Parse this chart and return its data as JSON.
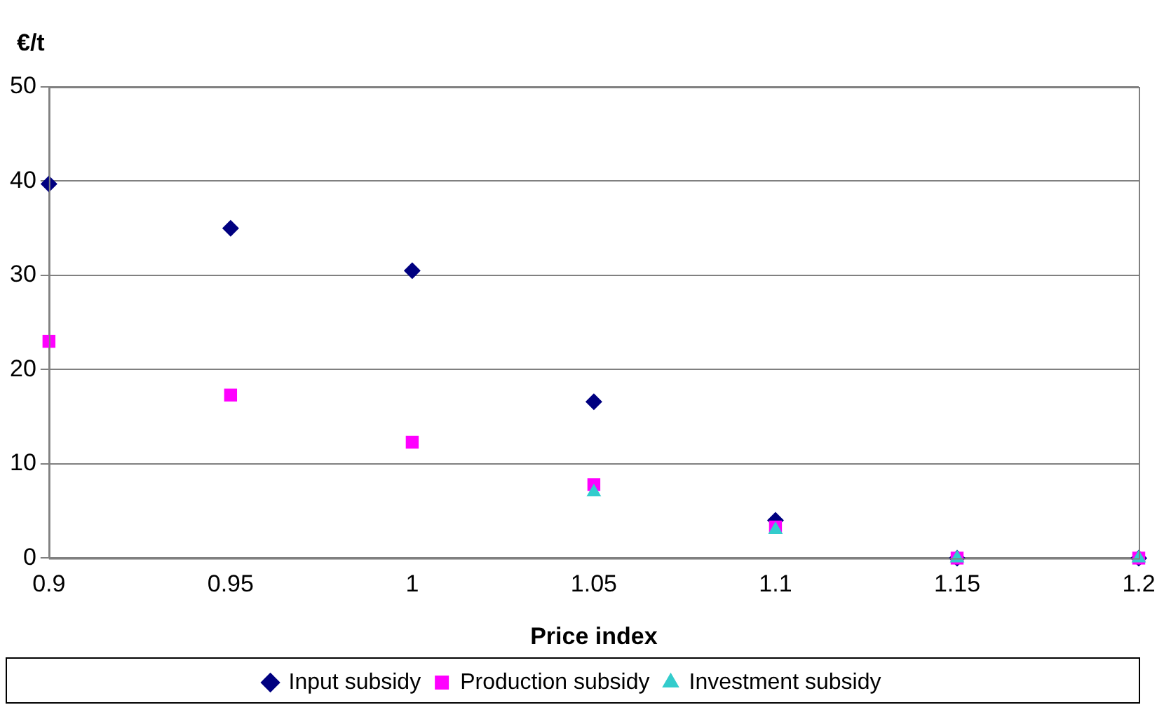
{
  "chart_data": {
    "type": "scatter",
    "xlabel": "Price index",
    "ylabel": "€/t",
    "x": [
      0.9,
      0.95,
      1,
      1.05,
      1.1,
      1.15,
      1.2
    ],
    "series": [
      {
        "name": "Input subsidy",
        "color": "#000080",
        "marker": "diamond",
        "values": [
          39.7,
          35,
          30.5,
          16.6,
          4,
          0,
          0
        ]
      },
      {
        "name": "Production subsidy",
        "color": "#ff00ff",
        "marker": "square",
        "values": [
          23,
          17.3,
          12.3,
          7.8,
          3.3,
          0,
          0
        ]
      },
      {
        "name": "Investment subsidy",
        "color": "#33cccc",
        "marker": "triangle",
        "values": [
          null,
          null,
          null,
          7,
          3,
          0,
          0
        ]
      }
    ],
    "xlim": [
      0.9,
      1.2
    ],
    "xticks": [
      0.9,
      0.95,
      1,
      1.05,
      1.1,
      1.15,
      1.2
    ],
    "ylim": [
      0,
      50
    ],
    "yticks": [
      0,
      10,
      20,
      30,
      40,
      50
    ],
    "grid": "y",
    "legend": "bottom"
  }
}
